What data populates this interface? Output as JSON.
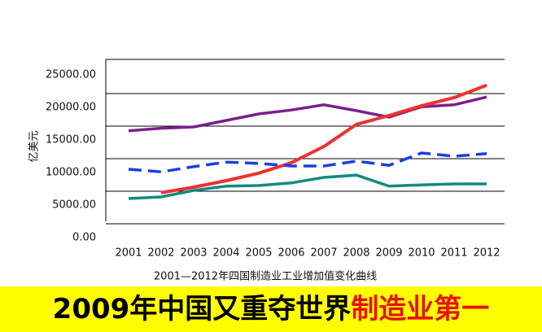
{
  "chart_data": {
    "type": "line",
    "y_label": "亿美元",
    "caption": "2001—2012年四国制造业工业增加值变化曲线",
    "categories": [
      "2001",
      "2002",
      "2003",
      "2004",
      "2005",
      "2006",
      "2007",
      "2008",
      "2009",
      "2010",
      "2011",
      "2012"
    ],
    "ylim": [
      0,
      27500
    ],
    "yticks": [
      {
        "value": 0,
        "label": "0.00"
      },
      {
        "value": 5000,
        "label": "5000.00"
      },
      {
        "value": 10000,
        "label": "10000.00"
      },
      {
        "value": 15000,
        "label": "15000.00"
      },
      {
        "value": 20000,
        "label": "20000.00"
      },
      {
        "value": 25000,
        "label": "25000.00"
      }
    ],
    "grid": true,
    "series": [
      {
        "color": "#7a1f8c",
        "dash": false,
        "values": [
          16400,
          16800,
          17000,
          18000,
          19000,
          19600,
          20400,
          19500,
          18500,
          20100,
          20400,
          21600
        ]
      },
      {
        "color": "#f03030",
        "dash": false,
        "values": [
          null,
          6900,
          7750,
          8750,
          9900,
          11500,
          14000,
          17400,
          18750,
          20250,
          21500,
          23400
        ]
      },
      {
        "color": "#1a3fe0",
        "dash": true,
        "values": [
          10500,
          10100,
          10900,
          11600,
          11400,
          11000,
          11000,
          11750,
          11100,
          13000,
          12500,
          12900
        ]
      },
      {
        "color": "#138a80",
        "dash": false,
        "values": [
          6000,
          6250,
          7250,
          7900,
          8000,
          8400,
          9250,
          9600,
          7900,
          8100,
          8250,
          8250
        ]
      }
    ]
  },
  "banner": {
    "text_black": "2009年中国又重夺世界",
    "text_red": "制造业第一"
  }
}
